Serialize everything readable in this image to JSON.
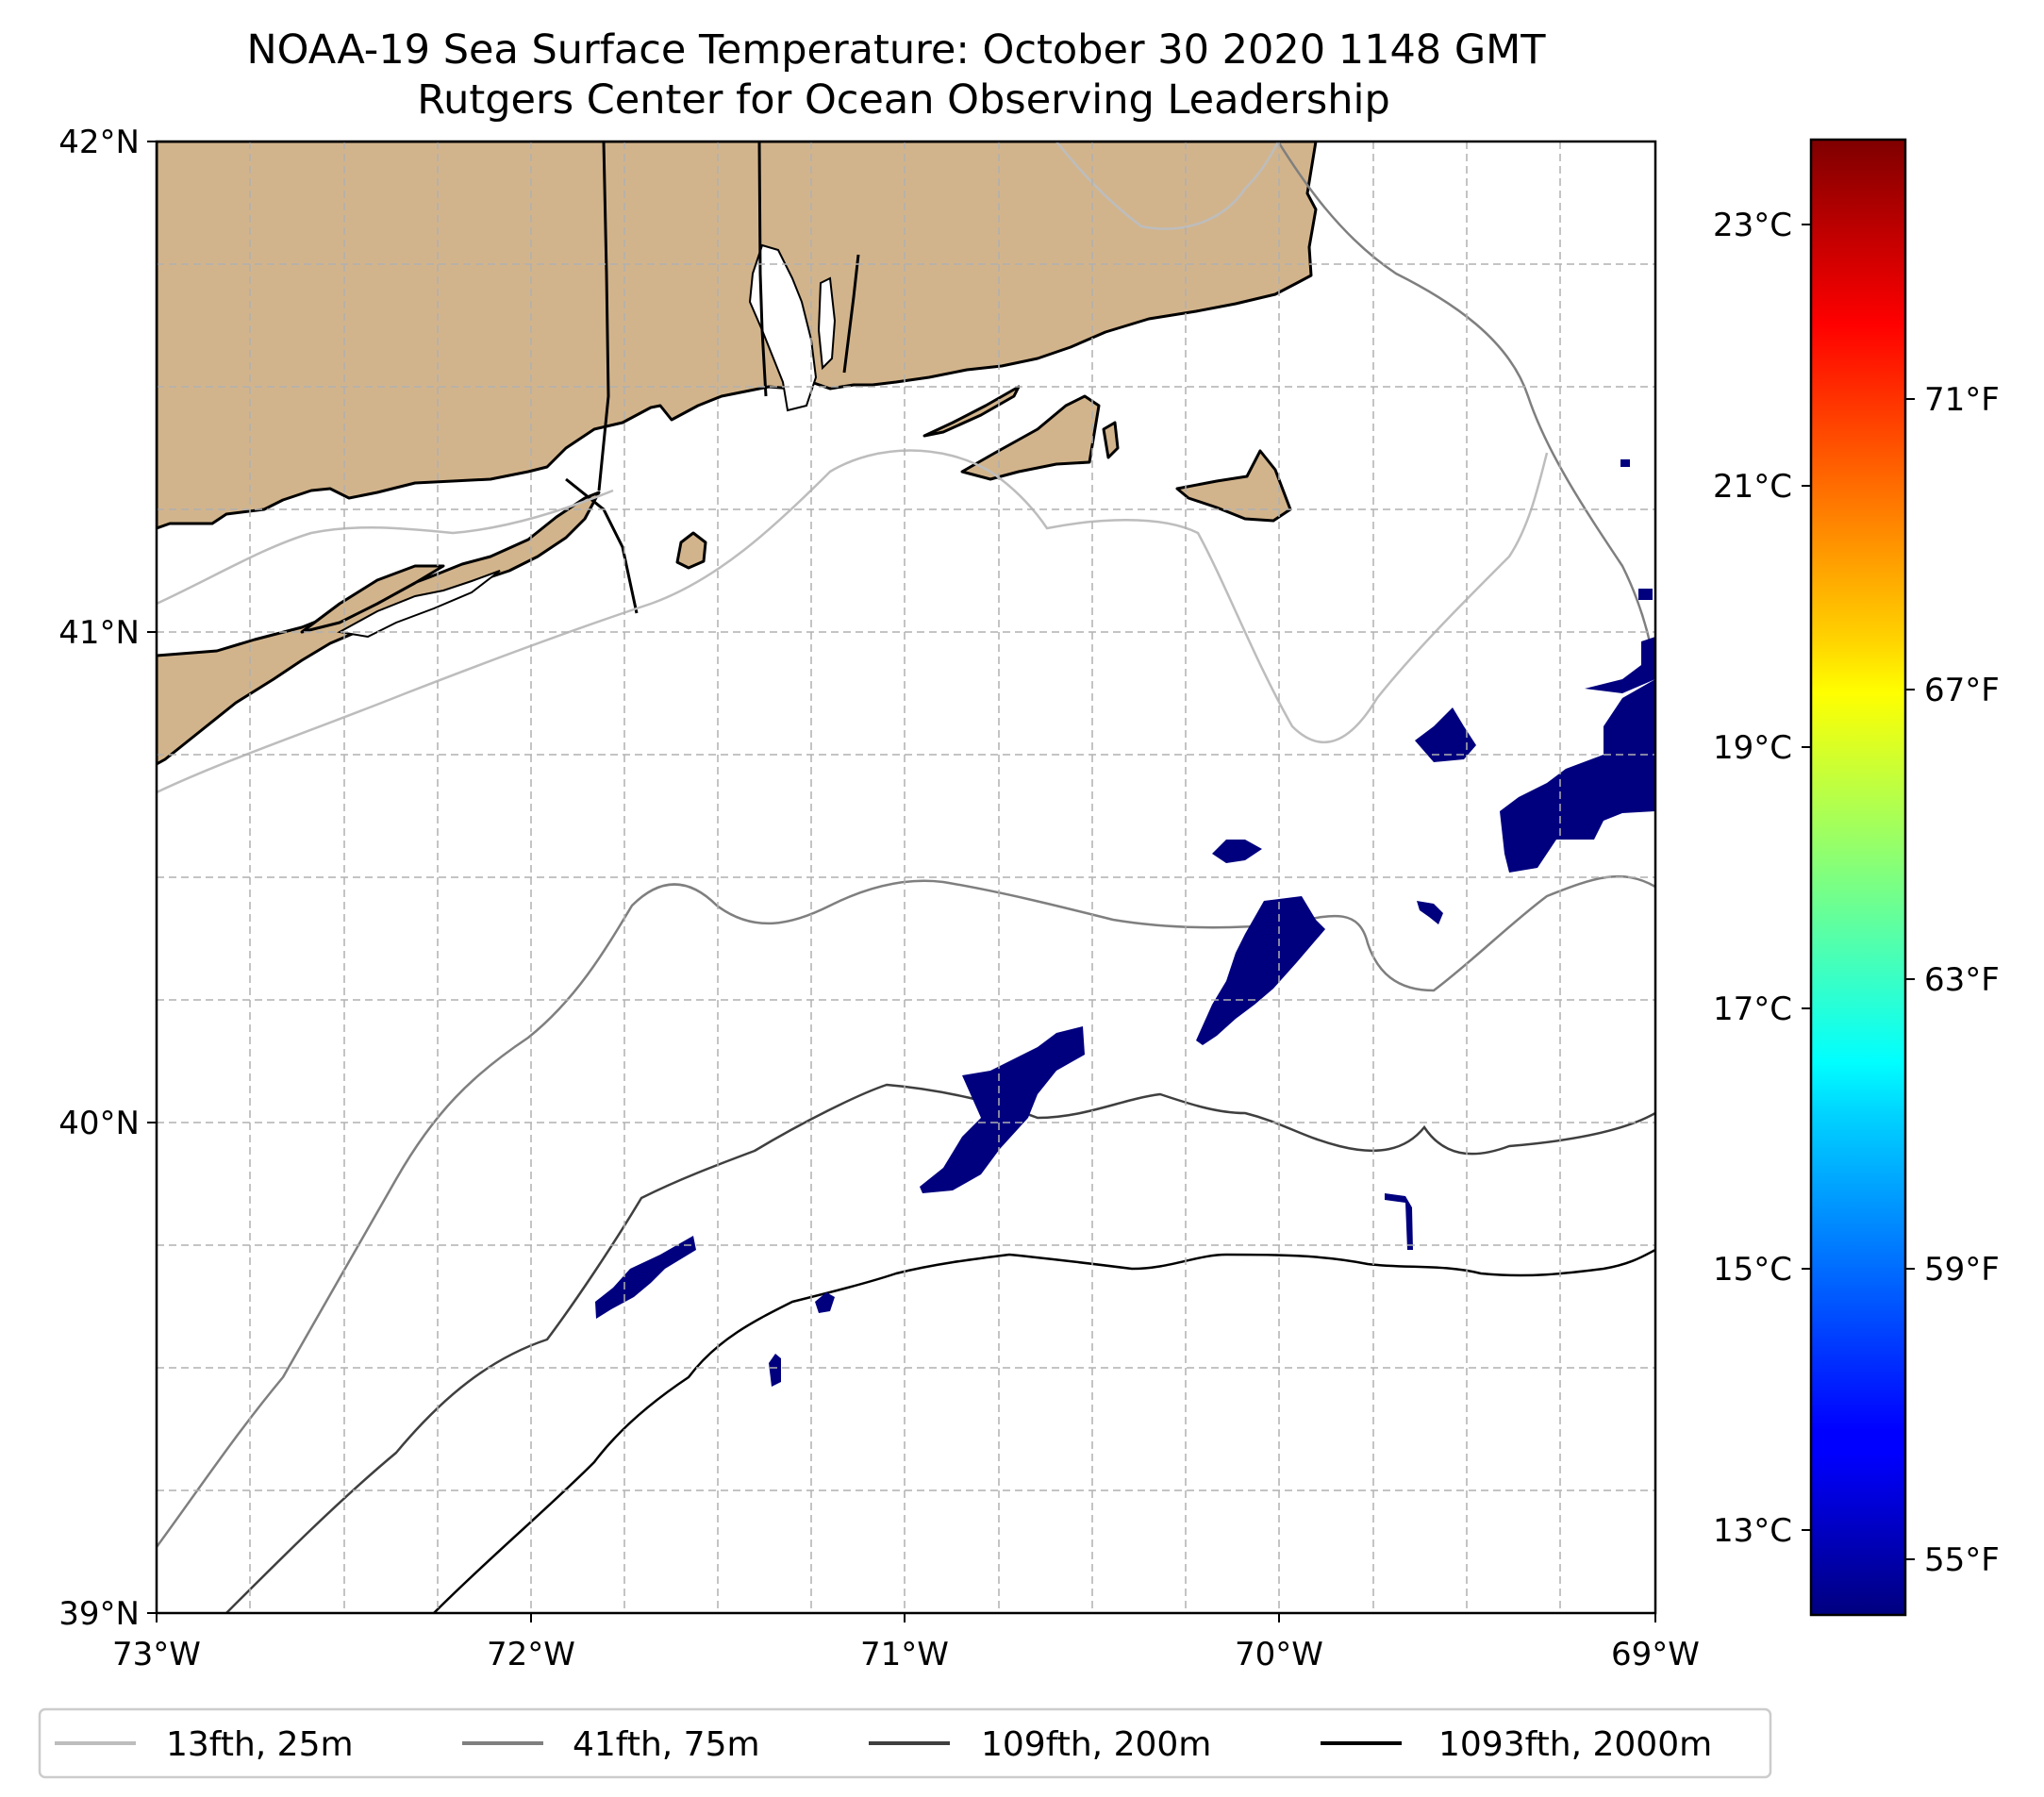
{
  "title": "NOAA-19 Sea Surface Temperature: October 30 2020 1148 GMT",
  "subtitle": "Rutgers Center for Ocean Observing Leadership",
  "colors": {
    "land": "#d2b48c",
    "cold_patch": "#00007f",
    "grid": "#b0b0b0",
    "coastline": "#000000"
  },
  "map": {
    "lon_range": [
      -73,
      -69
    ],
    "lat_range": [
      39,
      42
    ],
    "lon_ticks": [
      "73°W",
      "72°W",
      "71°W",
      "70°W",
      "69°W"
    ],
    "lat_ticks": [
      "42°N",
      "41°N",
      "40°N",
      "39°N"
    ],
    "grid": true,
    "colormap": "jet"
  },
  "colorbar": {
    "range_c": [
      12.4,
      23.7
    ],
    "celsius_ticks": [
      "23°C",
      "21°C",
      "19°C",
      "17°C",
      "15°C",
      "13°C"
    ],
    "fahrenheit_ticks": [
      "71°F",
      "67°F",
      "63°F",
      "59°F",
      "55°F"
    ]
  },
  "legend": {
    "placement": "bottom",
    "entries": [
      {
        "label": "13fth, 25m",
        "color": "#bdbdbd"
      },
      {
        "label": "41fth, 75m",
        "color": "#7f7f7f"
      },
      {
        "label": "109fth, 200m",
        "color": "#3f3f3f"
      },
      {
        "label": "1093fth, 2000m",
        "color": "#000000"
      }
    ]
  }
}
